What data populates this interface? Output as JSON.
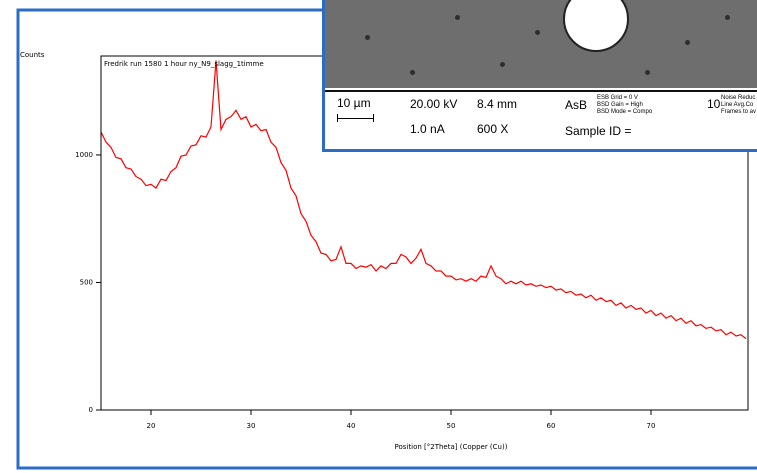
{
  "chart_data": {
    "type": "line",
    "title": "Fredrik run 1580 1 hour ny_N9_slagg_1timme",
    "y_label": "Counts",
    "x_label": "Position [°2Theta] (Copper (Cu))",
    "color": "#ff0000",
    "xlim": [
      15,
      79.7
    ],
    "ylim": [
      0,
      1388
    ],
    "xticks": [
      20,
      30,
      40,
      50,
      60,
      70
    ],
    "yticks": [
      0,
      500,
      1000
    ],
    "x": [
      15,
      15.5,
      16,
      16.5,
      17,
      17.5,
      18,
      18.5,
      19,
      19.5,
      20,
      20.5,
      21,
      21.5,
      22,
      22.5,
      23,
      23.5,
      24,
      24.5,
      25,
      25.5,
      26,
      26.5,
      27,
      27.5,
      28,
      28.5,
      29,
      29.5,
      30,
      30.5,
      31,
      31.5,
      32,
      32.5,
      33,
      33.5,
      34,
      34.5,
      35,
      35.5,
      36,
      36.5,
      37,
      37.5,
      38,
      38.5,
      39,
      39.5,
      40,
      40.5,
      41,
      41.5,
      42,
      42.5,
      43,
      43.5,
      44,
      44.5,
      45,
      45.5,
      46,
      46.5,
      47,
      47.5,
      48,
      48.5,
      49,
      49.5,
      50,
      50.5,
      51,
      51.5,
      52,
      52.5,
      53,
      53.5,
      54,
      54.5,
      55,
      55.5,
      56,
      56.5,
      57,
      57.5,
      58,
      58.5,
      59,
      59.5,
      60,
      60.5,
      61,
      61.5,
      62,
      62.5,
      63,
      63.5,
      64,
      64.5,
      65,
      65.5,
      66,
      66.5,
      67,
      67.5,
      68,
      68.5,
      69,
      69.5,
      70,
      70.5,
      71,
      71.5,
      72,
      72.5,
      73,
      73.5,
      74,
      74.5,
      75,
      75.5,
      76,
      76.5,
      77,
      77.5,
      78,
      78.5,
      79,
      79.5
    ],
    "values": [
      1090,
      1050,
      1030,
      990,
      985,
      950,
      945,
      915,
      905,
      880,
      885,
      870,
      905,
      900,
      935,
      950,
      995,
      1000,
      1035,
      1040,
      1075,
      1070,
      1110,
      1370,
      1100,
      1140,
      1150,
      1175,
      1140,
      1150,
      1110,
      1120,
      1095,
      1100,
      1050,
      1030,
      970,
      940,
      870,
      840,
      770,
      740,
      685,
      660,
      615,
      610,
      585,
      590,
      640,
      575,
      575,
      555,
      565,
      560,
      570,
      545,
      565,
      555,
      575,
      575,
      610,
      600,
      575,
      595,
      630,
      575,
      565,
      545,
      545,
      525,
      525,
      510,
      515,
      505,
      515,
      505,
      525,
      520,
      565,
      525,
      515,
      495,
      505,
      495,
      505,
      490,
      495,
      485,
      490,
      480,
      485,
      470,
      475,
      460,
      465,
      450,
      455,
      440,
      450,
      430,
      440,
      425,
      430,
      410,
      420,
      400,
      410,
      395,
      400,
      380,
      390,
      370,
      380,
      360,
      370,
      350,
      360,
      340,
      350,
      330,
      335,
      320,
      325,
      310,
      315,
      295,
      305,
      290,
      295,
      280
    ]
  },
  "sem_panel": {
    "scale": "10 µm",
    "voltage": "20.00 kV",
    "working_distance": "8.4 mm",
    "detector": "AsB",
    "esb_grid": "ESB Grid =    0 V",
    "bsd_gain": "BSD Gain = High",
    "bsd_mode": "BSD Mode = Compo",
    "frames": "10",
    "noise_reduction": "Noise Reduc",
    "line_avg": "Line Avg.Co",
    "frames_to_avg": "Frames to av",
    "current": "1.0 nA",
    "magnification": "600 X",
    "sample_id": "Sample ID ="
  }
}
